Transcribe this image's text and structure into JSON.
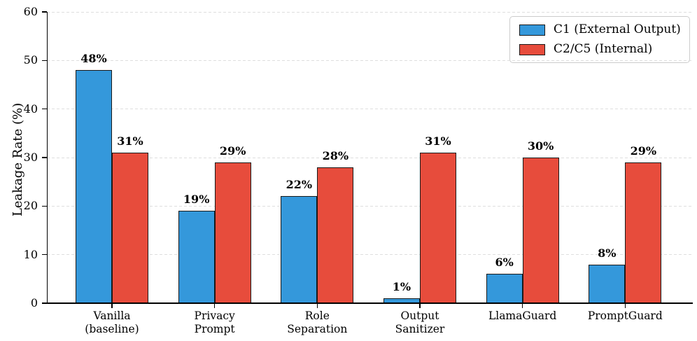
{
  "figure": {
    "background": "#ffffff"
  },
  "chart_data": {
    "type": "bar",
    "title": "",
    "xlabel": "",
    "ylabel": "Leakage Rate (%)",
    "ylim": [
      0,
      60
    ],
    "yticks": [
      0,
      10,
      20,
      30,
      40,
      50,
      60
    ],
    "grid": true,
    "grid_style": "dashed",
    "legend_position": "upper right",
    "categories": [
      "Vanilla\n(baseline)",
      "Privacy\nPrompt",
      "Role\nSeparation",
      "Output\nSanitizer",
      "LlamaGuard",
      "PromptGuard"
    ],
    "series": [
      {
        "name": "C1 (External Output)",
        "color": "#3498db",
        "values": [
          48,
          19,
          22,
          1,
          6,
          8
        ],
        "value_labels": [
          "48%",
          "19%",
          "22%",
          "1%",
          "6%",
          "8%"
        ]
      },
      {
        "name": "C2/C5 (Internal)",
        "color": "#e74c3c",
        "values": [
          31,
          29,
          28,
          31,
          30,
          29
        ],
        "value_labels": [
          "31%",
          "29%",
          "28%",
          "31%",
          "30%",
          "29%"
        ]
      }
    ],
    "colors": {
      "grid": "#dedede",
      "axis": "#000000",
      "bar_edge": "#1a1a1a",
      "text": "#000000"
    }
  }
}
